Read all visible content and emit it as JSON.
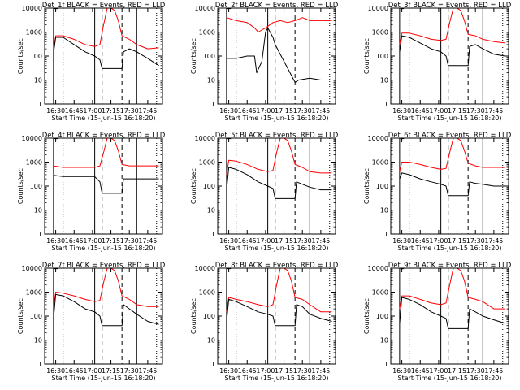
{
  "chart_data": [
    {
      "type": "line",
      "title": "Det_1f BLACK = Events, RED = LLD",
      "xlabel": "Start Time (15-Jun-15 16:18:20)",
      "ylabel": "Counts/sec",
      "xlim": [
        16.35,
        17.95
      ],
      "ylim": [
        1,
        10000
      ],
      "yscale": "log",
      "x_ticks": [
        "16:30",
        "16:45",
        "17:00",
        "17:15",
        "17:30",
        "17:45"
      ],
      "y_ticks": [
        "1",
        "10",
        "100",
        "1000",
        "10000"
      ],
      "solid_vlines": [
        16.47,
        17.03,
        17.6
      ],
      "dashed_vlines": [
        17.13,
        17.4
      ],
      "dotted_vlines": [
        16.6,
        17.87
      ],
      "series": [
        {
          "name": "LLD",
          "color": "#ff0000",
          "x": [
            16.47,
            16.5,
            16.6,
            16.75,
            16.9,
            17.03,
            17.1,
            17.15,
            17.2,
            17.25,
            17.3,
            17.35,
            17.4,
            17.5,
            17.6,
            17.75,
            17.9
          ],
          "values": [
            200,
            700,
            700,
            500,
            300,
            250,
            300,
            2000,
            10000,
            10000,
            8000,
            3000,
            700,
            500,
            300,
            200,
            220
          ]
        },
        {
          "name": "Events",
          "color": "#000000",
          "x": [
            16.47,
            16.5,
            16.6,
            16.75,
            16.9,
            17.03,
            17.1,
            17.13,
            17.4,
            17.42,
            17.5,
            17.6,
            17.75,
            17.9
          ],
          "values": [
            130,
            600,
            600,
            300,
            150,
            100,
            70,
            30,
            30,
            150,
            200,
            150,
            80,
            40
          ]
        }
      ]
    },
    {
      "type": "line",
      "title": "Det_2f BLACK = Events, RED = LLD",
      "xlabel": "Start Time (15-Jun-15 16:18:20)",
      "ylabel": "Counts/sec",
      "xlim": [
        16.35,
        17.95
      ],
      "ylim": [
        1,
        10000
      ],
      "yscale": "log",
      "x_ticks": [
        "16:30",
        "16:45",
        "17:00",
        "17:15",
        "17:30",
        "17:45"
      ],
      "y_ticks": [
        "1",
        "10",
        "100",
        "1000",
        "10000"
      ],
      "solid_vlines": [
        16.47,
        17.03,
        17.6
      ],
      "dashed_vlines": [
        17.13,
        17.4
      ],
      "dotted_vlines": [
        16.6,
        17.87
      ],
      "series": [
        {
          "name": "LLD",
          "color": "#ff0000",
          "x": [
            16.47,
            16.6,
            16.75,
            16.85,
            16.9,
            17.0,
            17.1,
            17.2,
            17.3,
            17.4,
            17.5,
            17.6,
            17.75,
            17.9
          ],
          "values": [
            4000,
            3000,
            2500,
            1500,
            1000,
            1500,
            2500,
            3000,
            2500,
            3000,
            4000,
            3000,
            3000,
            3000
          ]
        },
        {
          "name": "Events",
          "color": "#000000",
          "x": [
            16.47,
            16.6,
            16.75,
            16.85,
            16.88,
            16.95,
            17.0,
            17.03,
            17.1,
            17.13,
            17.4,
            17.45,
            17.6,
            17.75,
            17.9
          ],
          "values": [
            80,
            80,
            100,
            100,
            20,
            60,
            1000,
            1500,
            600,
            300,
            8,
            10,
            12,
            10,
            10
          ]
        }
      ]
    },
    {
      "type": "line",
      "title": "Det_3f BLACK = Events, RED = LLD",
      "xlabel": "Start Time (15-Jun-15 16:18:20)",
      "ylabel": "Counts/sec",
      "xlim": [
        16.35,
        17.95
      ],
      "ylim": [
        1,
        10000
      ],
      "yscale": "log",
      "x_ticks": [
        "16:30",
        "16:45",
        "17:00",
        "17:15",
        "17:30",
        "17:45"
      ],
      "y_ticks": [
        "1",
        "10",
        "100",
        "1000",
        "10000"
      ],
      "solid_vlines": [
        16.47,
        17.03,
        17.6
      ],
      "dashed_vlines": [
        17.13,
        17.4
      ],
      "dotted_vlines": [
        16.6,
        17.87
      ],
      "series": [
        {
          "name": "LLD",
          "color": "#ff0000",
          "x": [
            16.47,
            16.5,
            16.6,
            16.75,
            16.9,
            17.03,
            17.1,
            17.15,
            17.2,
            17.25,
            17.3,
            17.35,
            17.4,
            17.5,
            17.6,
            17.75,
            17.9
          ],
          "values": [
            300,
            900,
            900,
            700,
            500,
            450,
            500,
            2500,
            10000,
            10000,
            8000,
            3000,
            800,
            700,
            500,
            400,
            350
          ]
        },
        {
          "name": "Events",
          "color": "#000000",
          "x": [
            16.47,
            16.5,
            16.6,
            16.75,
            16.9,
            17.03,
            17.1,
            17.13,
            17.4,
            17.42,
            17.5,
            17.6,
            17.75,
            17.9
          ],
          "values": [
            150,
            700,
            600,
            350,
            200,
            150,
            100,
            40,
            40,
            250,
            300,
            200,
            120,
            100
          ]
        }
      ]
    },
    {
      "type": "line",
      "title": "Det_4f BLACK = Events, RED = LLD",
      "xlabel": "Start Time (15-Jun-15 16:18:20)",
      "ylabel": "Counts/sec",
      "xlim": [
        16.35,
        17.95
      ],
      "ylim": [
        1,
        10000
      ],
      "yscale": "log",
      "x_ticks": [
        "16:30",
        "16:45",
        "17:00",
        "17:15",
        "17:30",
        "17:45"
      ],
      "y_ticks": [
        "1",
        "10",
        "100",
        "1000",
        "10000"
      ],
      "solid_vlines": [
        16.47,
        17.03,
        17.6
      ],
      "dashed_vlines": [
        17.13,
        17.4
      ],
      "dotted_vlines": [
        16.6,
        17.87
      ],
      "series": [
        {
          "name": "LLD",
          "color": "#ff0000",
          "x": [
            16.47,
            16.6,
            16.75,
            16.9,
            17.03,
            17.1,
            17.15,
            17.2,
            17.25,
            17.3,
            17.35,
            17.4,
            17.5,
            17.6,
            17.75,
            17.9
          ],
          "values": [
            700,
            600,
            600,
            600,
            600,
            700,
            2500,
            10000,
            10000,
            8000,
            3000,
            800,
            700,
            700,
            700,
            700
          ]
        },
        {
          "name": "Events",
          "color": "#000000",
          "x": [
            16.47,
            16.6,
            16.75,
            16.9,
            17.03,
            17.1,
            17.13,
            17.4,
            17.42,
            17.5,
            17.6,
            17.75,
            17.9
          ],
          "values": [
            280,
            250,
            250,
            250,
            250,
            150,
            50,
            50,
            200,
            200,
            200,
            200,
            200
          ]
        }
      ]
    },
    {
      "type": "line",
      "title": "Det_5f BLACK = Events, RED = LLD",
      "xlabel": "Start Time (15-Jun-15 16:18:20)",
      "ylabel": "Counts/sec",
      "xlim": [
        16.35,
        17.95
      ],
      "ylim": [
        1,
        10000
      ],
      "yscale": "log",
      "x_ticks": [
        "16:30",
        "16:45",
        "17:00",
        "17:15",
        "17:30",
        "17:45"
      ],
      "y_ticks": [
        "1",
        "10",
        "100",
        "1000",
        "10000"
      ],
      "solid_vlines": [
        16.47,
        17.03,
        17.6
      ],
      "dashed_vlines": [
        17.13,
        17.4
      ],
      "dotted_vlines": [
        16.6,
        17.87
      ],
      "series": [
        {
          "name": "LLD",
          "color": "#ff0000",
          "x": [
            16.47,
            16.5,
            16.6,
            16.75,
            16.9,
            17.03,
            17.1,
            17.15,
            17.2,
            17.25,
            17.3,
            17.35,
            17.4,
            17.5,
            17.6,
            17.75,
            17.9
          ],
          "values": [
            300,
            1200,
            1100,
            800,
            500,
            400,
            450,
            2500,
            10000,
            10000,
            8000,
            3000,
            800,
            600,
            400,
            350,
            350
          ]
        },
        {
          "name": "Events",
          "color": "#000000",
          "x": [
            16.47,
            16.5,
            16.6,
            16.75,
            16.9,
            17.03,
            17.1,
            17.13,
            17.4,
            17.42,
            17.5,
            17.6,
            17.75,
            17.9
          ],
          "values": [
            70,
            600,
            500,
            300,
            150,
            100,
            80,
            30,
            30,
            150,
            120,
            90,
            70,
            70
          ]
        }
      ]
    },
    {
      "type": "line",
      "title": "Det_6f BLACK = Events, RED = LLD",
      "xlabel": "Start Time (15-Jun-15 16:18:20)",
      "ylabel": "Counts/sec",
      "xlim": [
        16.35,
        17.95
      ],
      "ylim": [
        1,
        10000
      ],
      "yscale": "log",
      "x_ticks": [
        "16:30",
        "16:45",
        "17:00",
        "17:15",
        "17:30",
        "17:45"
      ],
      "y_ticks": [
        "1",
        "10",
        "100",
        "1000",
        "10000"
      ],
      "solid_vlines": [
        16.47,
        17.03,
        17.6
      ],
      "dashed_vlines": [
        17.13,
        17.4
      ],
      "dotted_vlines": [
        16.6,
        17.87
      ],
      "series": [
        {
          "name": "LLD",
          "color": "#ff0000",
          "x": [
            16.47,
            16.5,
            16.6,
            16.75,
            16.9,
            17.03,
            17.1,
            17.15,
            17.2,
            17.25,
            17.3,
            17.35,
            17.4,
            17.5,
            17.6,
            17.75,
            17.9
          ],
          "values": [
            400,
            1000,
            1000,
            800,
            600,
            500,
            550,
            2500,
            10000,
            10000,
            8000,
            3000,
            900,
            700,
            600,
            600,
            600
          ]
        },
        {
          "name": "Events",
          "color": "#000000",
          "x": [
            16.47,
            16.5,
            16.6,
            16.75,
            16.9,
            17.03,
            17.1,
            17.13,
            17.4,
            17.42,
            17.5,
            17.6,
            17.75,
            17.9
          ],
          "values": [
            200,
            350,
            300,
            200,
            150,
            120,
            100,
            40,
            40,
            150,
            130,
            120,
            100,
            100
          ]
        }
      ]
    },
    {
      "type": "line",
      "title": "Det_7f BLACK = Events, RED = LLD",
      "xlabel": "Start Time (15-Jun-15 16:18:20)",
      "ylabel": "Counts/sec",
      "xlim": [
        16.35,
        17.95
      ],
      "ylim": [
        1,
        10000
      ],
      "yscale": "log",
      "x_ticks": [
        "16:30",
        "16:45",
        "17:00",
        "17:15",
        "17:30",
        "17:45"
      ],
      "y_ticks": [
        "1",
        "10",
        "100",
        "1000",
        "10000"
      ],
      "solid_vlines": [
        16.47,
        17.03,
        17.6
      ],
      "dashed_vlines": [
        17.13,
        17.4
      ],
      "dotted_vlines": [
        16.6,
        17.87
      ],
      "series": [
        {
          "name": "LLD",
          "color": "#ff0000",
          "x": [
            16.47,
            16.5,
            16.6,
            16.75,
            16.9,
            17.03,
            17.1,
            17.15,
            17.2,
            17.25,
            17.3,
            17.35,
            17.4,
            17.5,
            17.6,
            17.75,
            17.9
          ],
          "values": [
            250,
            1000,
            900,
            700,
            500,
            400,
            450,
            2500,
            10000,
            10000,
            8000,
            3000,
            700,
            500,
            300,
            250,
            250
          ]
        },
        {
          "name": "Events",
          "color": "#000000",
          "x": [
            16.47,
            16.5,
            16.6,
            16.75,
            16.9,
            17.03,
            17.1,
            17.13,
            17.4,
            17.42,
            17.5,
            17.6,
            17.75,
            17.9
          ],
          "values": [
            80,
            800,
            700,
            400,
            200,
            150,
            100,
            40,
            40,
            300,
            200,
            120,
            60,
            45
          ]
        }
      ]
    },
    {
      "type": "line",
      "title": "Det_8f BLACK = Events, RED = LLD",
      "xlabel": "Start Time (15-Jun-15 16:18:20)",
      "ylabel": "Counts/sec",
      "xlim": [
        16.35,
        17.95
      ],
      "ylim": [
        1,
        10000
      ],
      "yscale": "log",
      "x_ticks": [
        "16:30",
        "16:45",
        "17:00",
        "17:15",
        "17:30",
        "17:45"
      ],
      "y_ticks": [
        "1",
        "10",
        "100",
        "1000",
        "10000"
      ],
      "solid_vlines": [
        16.47,
        17.03,
        17.6
      ],
      "dashed_vlines": [
        17.13,
        17.4
      ],
      "dotted_vlines": [
        16.6,
        17.87
      ],
      "series": [
        {
          "name": "LLD",
          "color": "#ff0000",
          "x": [
            16.47,
            16.5,
            16.6,
            16.75,
            16.9,
            17.03,
            17.1,
            17.15,
            17.2,
            17.25,
            17.3,
            17.35,
            17.4,
            17.5,
            17.6,
            17.75,
            17.9
          ],
          "values": [
            150,
            600,
            500,
            400,
            300,
            250,
            300,
            2000,
            10000,
            10000,
            8000,
            3000,
            600,
            500,
            300,
            150,
            150
          ]
        },
        {
          "name": "Events",
          "color": "#000000",
          "x": [
            16.47,
            16.5,
            16.6,
            16.75,
            16.9,
            17.03,
            17.1,
            17.13,
            17.4,
            17.42,
            17.5,
            17.6,
            17.75,
            17.9
          ],
          "values": [
            60,
            500,
            400,
            250,
            150,
            120,
            100,
            40,
            40,
            300,
            250,
            120,
            80,
            60
          ]
        }
      ]
    },
    {
      "type": "line",
      "title": "Det_9f BLACK = Events, RED = LLD",
      "xlabel": "Start Time (15-Jun-15 16:18:20)",
      "ylabel": "Counts/sec",
      "xlim": [
        16.35,
        17.95
      ],
      "ylim": [
        1,
        10000
      ],
      "yscale": "log",
      "x_ticks": [
        "16:30",
        "16:45",
        "17:00",
        "17:15",
        "17:30",
        "17:45"
      ],
      "y_ticks": [
        "1",
        "10",
        "100",
        "1000",
        "10000"
      ],
      "solid_vlines": [
        16.47,
        17.03,
        17.6
      ],
      "dashed_vlines": [
        17.13,
        17.4
      ],
      "dotted_vlines": [
        16.6,
        17.87
      ],
      "series": [
        {
          "name": "LLD",
          "color": "#ff0000",
          "x": [
            16.47,
            16.5,
            16.6,
            16.75,
            16.9,
            17.03,
            17.1,
            17.15,
            17.2,
            17.25,
            17.3,
            17.35,
            17.4,
            17.5,
            17.6,
            17.75,
            17.9
          ],
          "values": [
            200,
            700,
            700,
            500,
            350,
            300,
            350,
            2000,
            10000,
            10000,
            8000,
            3000,
            600,
            500,
            400,
            200,
            200
          ]
        },
        {
          "name": "Events",
          "color": "#000000",
          "x": [
            16.47,
            16.5,
            16.6,
            16.75,
            16.9,
            17.03,
            17.1,
            17.13,
            17.4,
            17.42,
            17.5,
            17.6,
            17.75,
            17.9
          ],
          "values": [
            50,
            600,
            500,
            300,
            150,
            100,
            80,
            30,
            30,
            200,
            150,
            100,
            70,
            50
          ]
        }
      ]
    }
  ]
}
